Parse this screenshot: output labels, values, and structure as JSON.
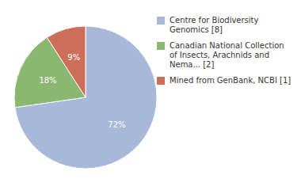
{
  "chart_data": {
    "type": "pie",
    "categories": [
      "Centre for Biodiversity\nGenomics [8]",
      "Canadian National Collection\nof Insects, Arachnids and\nNema... [2]",
      "Mined from GenBank, NCBI [1]"
    ],
    "values": [
      72,
      18,
      9
    ],
    "value_labels": [
      "72%",
      "18%",
      "9%"
    ],
    "colors": [
      "#a8b8d8",
      "#8ab870",
      "#cd6e5a"
    ],
    "data_labels": true,
    "legend": "right"
  }
}
